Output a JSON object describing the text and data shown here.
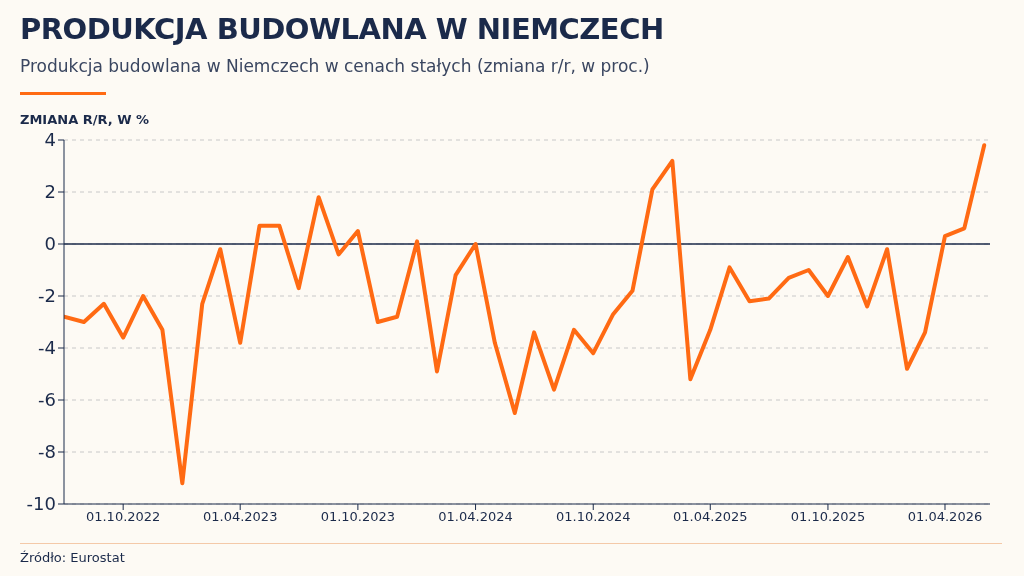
{
  "chart_data": {
    "type": "line",
    "title": "PRODUKCJA BUDOWLANA W NIEMCZECH",
    "subtitle": "Produkcja budowlana w Niemczech w cenach stałych (zmiana r/r, w proc.)",
    "ylabel": "ZMIANA R/R, W %",
    "annotations": [
      "Źródło: Eurostat"
    ],
    "x": [
      "2022-07",
      "2022-08",
      "2022-09",
      "2022-10",
      "2022-11",
      "2022-12",
      "2023-01",
      "2023-02",
      "2023-03",
      "2023-04",
      "2023-05",
      "2023-06",
      "2023-07",
      "2023-08",
      "2023-09",
      "2023-10",
      "2023-11",
      "2023-12",
      "2024-01",
      "2024-02",
      "2024-03",
      "2024-04",
      "2024-05",
      "2024-06",
      "2024-07",
      "2024-08",
      "2024-09",
      "2024-10",
      "2024-11",
      "2024-12",
      "2025-01",
      "2025-02",
      "2025-03",
      "2025-04",
      "2025-05",
      "2025-06",
      "2025-07",
      "2025-08",
      "2025-09",
      "2025-10",
      "2025-11",
      "2025-12",
      "2026-01",
      "2026-02",
      "2026-03",
      "2026-04",
      "2026-05",
      "2026-06"
    ],
    "series": [
      {
        "color": "#ff6a13",
        "values": [
          -2.8,
          -3.0,
          -2.3,
          -3.6,
          -2.0,
          -3.3,
          -9.2,
          -2.3,
          -0.2,
          -3.8,
          0.7,
          0.7,
          -1.7,
          1.8,
          -0.4,
          0.5,
          -3.0,
          -2.8,
          0.1,
          -4.9,
          -1.2,
          0.0,
          -3.8,
          -6.5,
          -3.4,
          -5.6,
          -3.3,
          -4.2,
          -2.7,
          -1.8,
          2.1,
          3.2,
          -5.2,
          -3.3,
          -0.9,
          -2.2,
          -2.1,
          -1.3,
          -1.0,
          -2.0,
          -0.5,
          -2.4,
          -0.2,
          -4.8,
          -3.4,
          0.3,
          0.6,
          3.8
        ]
      }
    ],
    "xlim": [
      "2022-07-01",
      "2026-06-10"
    ],
    "xticks": [
      {
        "value": "2022-10-01",
        "label": "01.10.2022"
      },
      {
        "value": "2023-04-01",
        "label": "01.04.2023"
      },
      {
        "value": "2023-10-01",
        "label": "01.10.2023"
      },
      {
        "value": "2024-04-01",
        "label": "01.04.2024"
      },
      {
        "value": "2024-10-01",
        "label": "01.10.2024"
      },
      {
        "value": "2025-04-01",
        "label": "01.04.2025"
      },
      {
        "value": "2025-10-01",
        "label": "01.10.2025"
      },
      {
        "value": "2026-04-01",
        "label": "01.04.2026"
      }
    ],
    "ylim": [
      -10,
      4
    ],
    "yticks": [
      -10,
      -8,
      -6,
      -4,
      -2,
      0,
      2,
      4
    ],
    "ref_lines": [
      {
        "axis": "y",
        "value": 0,
        "color": "#1b2a4a",
        "line_style": "solid"
      }
    ],
    "grid": "y",
    "marker": "none",
    "line_style": "solid"
  }
}
